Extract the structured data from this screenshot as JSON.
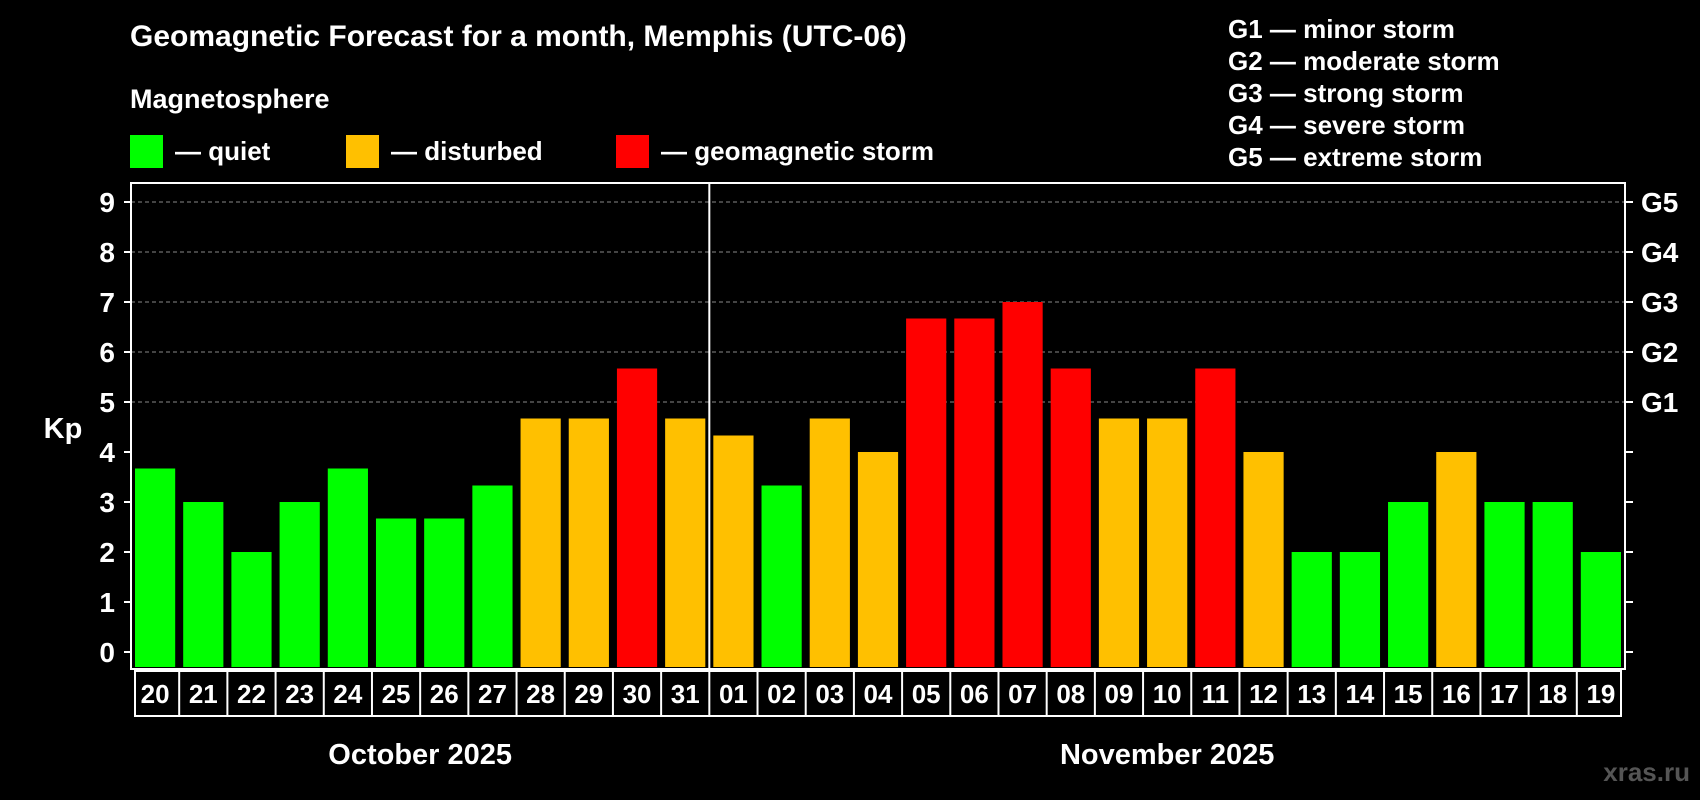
{
  "title": "Geomagnetic Forecast for a month, Memphis (UTC-06)",
  "legend": {
    "heading": "Magnetosphere",
    "items": [
      {
        "label": "— quiet",
        "color": "#00ff00"
      },
      {
        "label": "— disturbed",
        "color": "#ffc000"
      },
      {
        "label": "— geomagnetic storm",
        "color": "#ff0000"
      }
    ]
  },
  "g_levels": [
    "G1 — minor storm",
    "G2 — moderate storm",
    "G3 — strong storm",
    "G4 — severe storm",
    "G5 — extreme storm"
  ],
  "watermark": "xras.ru",
  "chart_data": {
    "type": "bar",
    "ylabel": "Kp",
    "ylim": [
      0,
      9
    ],
    "yticks": [
      "0",
      "1",
      "2",
      "3",
      "4",
      "5",
      "6",
      "7",
      "8",
      "9"
    ],
    "right_axis": [
      {
        "kp": 5,
        "label": "G1"
      },
      {
        "kp": 6,
        "label": "G2"
      },
      {
        "kp": 7,
        "label": "G3"
      },
      {
        "kp": 8,
        "label": "G4"
      },
      {
        "kp": 9,
        "label": "G5"
      }
    ],
    "months": [
      {
        "label": "October 2025",
        "days": [
          "20",
          "21",
          "22",
          "23",
          "24",
          "25",
          "26",
          "27",
          "28",
          "29",
          "30",
          "31"
        ]
      },
      {
        "label": "November 2025",
        "days": [
          "01",
          "02",
          "03",
          "04",
          "05",
          "06",
          "07",
          "08",
          "09",
          "10",
          "11",
          "12",
          "13",
          "14",
          "15",
          "16",
          "17",
          "18",
          "19"
        ]
      }
    ],
    "categories": [
      "20",
      "21",
      "22",
      "23",
      "24",
      "25",
      "26",
      "27",
      "28",
      "29",
      "30",
      "31",
      "01",
      "02",
      "03",
      "04",
      "05",
      "06",
      "07",
      "08",
      "09",
      "10",
      "11",
      "12",
      "13",
      "14",
      "15",
      "16",
      "17",
      "18",
      "19"
    ],
    "values": [
      3.67,
      3.0,
      2.0,
      3.0,
      3.67,
      2.67,
      2.67,
      3.33,
      4.67,
      4.67,
      5.67,
      4.67,
      4.33,
      3.33,
      4.67,
      4.0,
      6.67,
      6.67,
      7.0,
      5.67,
      4.67,
      4.67,
      5.67,
      4.0,
      2.0,
      2.0,
      3.0,
      4.0,
      3.0,
      3.0,
      2.0
    ],
    "levels": [
      "quiet",
      "quiet",
      "quiet",
      "quiet",
      "quiet",
      "quiet",
      "quiet",
      "quiet",
      "disturbed",
      "disturbed",
      "storm",
      "disturbed",
      "disturbed",
      "quiet",
      "disturbed",
      "disturbed",
      "storm",
      "storm",
      "storm",
      "storm",
      "disturbed",
      "disturbed",
      "storm",
      "disturbed",
      "quiet",
      "quiet",
      "quiet",
      "disturbed",
      "quiet",
      "quiet",
      "quiet"
    ],
    "colors": {
      "quiet": "#00ff00",
      "disturbed": "#ffc000",
      "storm": "#ff0000"
    },
    "grid": "dashed at each integer Kp from 5 to 9"
  }
}
